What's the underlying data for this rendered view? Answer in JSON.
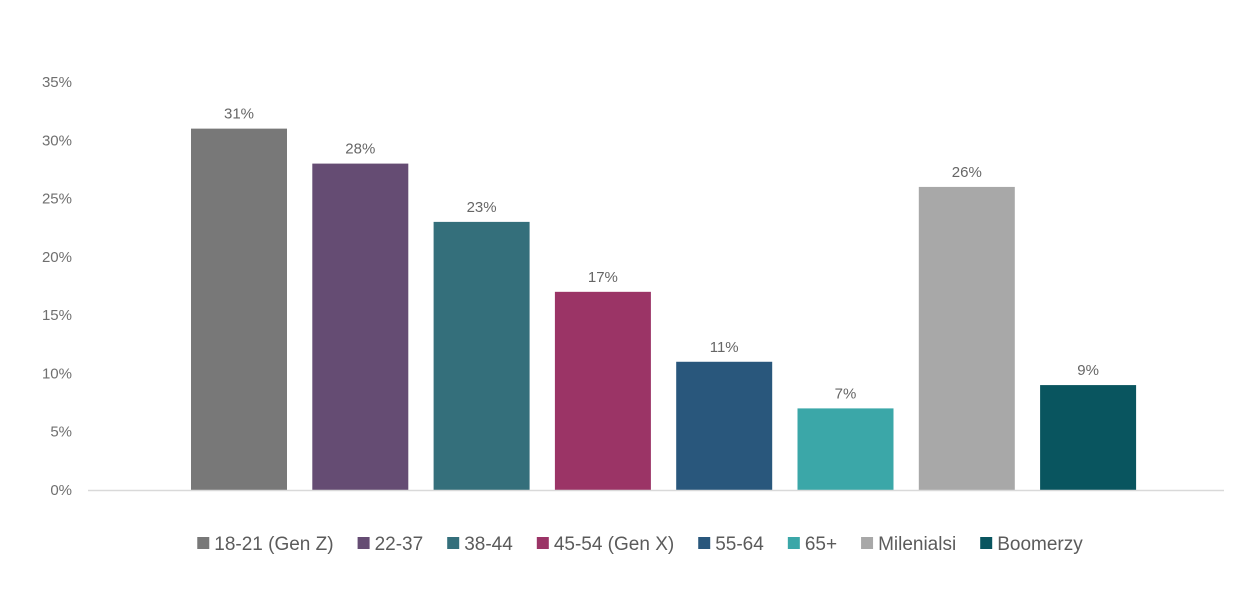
{
  "chart_data": {
    "type": "bar",
    "categories": [
      "18-21 (Gen Z)",
      "22-37",
      "38-44",
      "45-54 (Gen X)",
      "55-64",
      "65+",
      "Milenialsi",
      "Boomerzy"
    ],
    "values": [
      31,
      28,
      23,
      17,
      11,
      7,
      26,
      9
    ],
    "data_labels": [
      "31%",
      "28%",
      "23%",
      "17%",
      "11%",
      "7%",
      "26%",
      "9%"
    ],
    "colors": [
      "#787878",
      "#654c73",
      "#346f7b",
      "#9b3466",
      "#29577c",
      "#3ba7a8",
      "#a8a8a8",
      "#09555f"
    ],
    "ylim": [
      0,
      35
    ],
    "yticks": [
      0,
      5,
      10,
      15,
      20,
      25,
      30,
      35
    ],
    "ytick_labels": [
      "0%",
      "5%",
      "10%",
      "15%",
      "20%",
      "25%",
      "30%",
      "35%"
    ],
    "grid": false,
    "legend_position": "bottom",
    "title": "",
    "xlabel": "",
    "ylabel": ""
  }
}
